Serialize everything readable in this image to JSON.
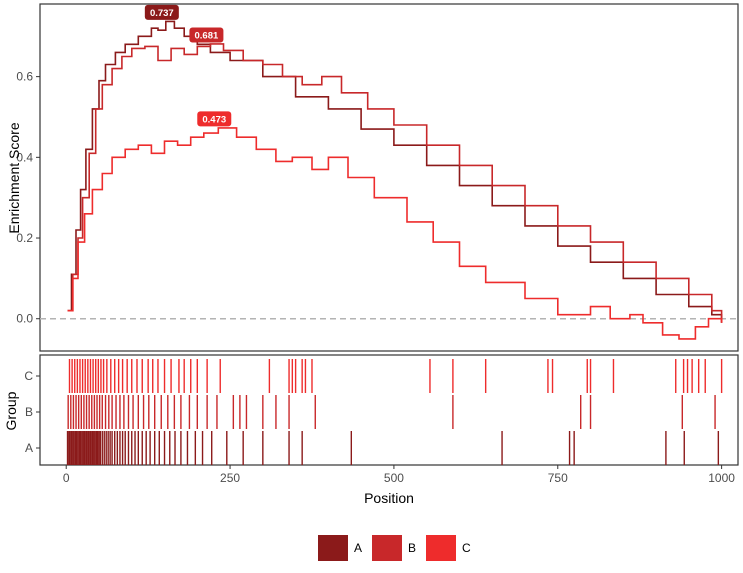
{
  "chart_data": [
    {
      "type": "line",
      "ylabel": "Enrichment Score",
      "xlim": [
        -40,
        1025
      ],
      "ylim": [
        -0.08,
        0.78
      ],
      "y_ticks": [
        0.0,
        0.2,
        0.4,
        0.6
      ],
      "y_tick_labels": [
        "0.0",
        "0.2",
        "0.4",
        "0.6"
      ],
      "reference_line": 0,
      "series": [
        {
          "name": "A",
          "color": "#8b1a1a",
          "peak": {
            "x": 152,
            "y": 0.737,
            "label": "0.737"
          },
          "points": [
            [
              2,
              0.02
            ],
            [
              8,
              0.11
            ],
            [
              15,
              0.22
            ],
            [
              22,
              0.32
            ],
            [
              30,
              0.42
            ],
            [
              40,
              0.52
            ],
            [
              50,
              0.59
            ],
            [
              60,
              0.63
            ],
            [
              75,
              0.66
            ],
            [
              90,
              0.68
            ],
            [
              110,
              0.7
            ],
            [
              130,
              0.72
            ],
            [
              140,
              0.715
            ],
            [
              152,
              0.737
            ],
            [
              165,
              0.72
            ],
            [
              180,
              0.7
            ],
            [
              200,
              0.68
            ],
            [
              220,
              0.66
            ],
            [
              250,
              0.64
            ],
            [
              300,
              0.6
            ],
            [
              350,
              0.55
            ],
            [
              400,
              0.52
            ],
            [
              450,
              0.47
            ],
            [
              500,
              0.43
            ],
            [
              550,
              0.38
            ],
            [
              600,
              0.33
            ],
            [
              650,
              0.28
            ],
            [
              700,
              0.23
            ],
            [
              750,
              0.18
            ],
            [
              800,
              0.14
            ],
            [
              850,
              0.1
            ],
            [
              900,
              0.06
            ],
            [
              950,
              0.03
            ],
            [
              985,
              0.01
            ],
            [
              1000,
              -0.01
            ]
          ]
        },
        {
          "name": "B",
          "color": "#c8282a",
          "peak": {
            "x": 220,
            "y": 0.681,
            "label": "0.681"
          },
          "points": [
            [
              2,
              0.02
            ],
            [
              10,
              0.11
            ],
            [
              18,
              0.2
            ],
            [
              25,
              0.3
            ],
            [
              35,
              0.41
            ],
            [
              45,
              0.52
            ],
            [
              55,
              0.58
            ],
            [
              70,
              0.62
            ],
            [
              85,
              0.65
            ],
            [
              100,
              0.67
            ],
            [
              120,
              0.675
            ],
            [
              140,
              0.64
            ],
            [
              160,
              0.67
            ],
            [
              180,
              0.655
            ],
            [
              200,
              0.675
            ],
            [
              220,
              0.681
            ],
            [
              240,
              0.665
            ],
            [
              270,
              0.64
            ],
            [
              300,
              0.63
            ],
            [
              330,
              0.6
            ],
            [
              360,
              0.58
            ],
            [
              390,
              0.6
            ],
            [
              420,
              0.56
            ],
            [
              460,
              0.52
            ],
            [
              500,
              0.48
            ],
            [
              550,
              0.43
            ],
            [
              600,
              0.38
            ],
            [
              650,
              0.33
            ],
            [
              700,
              0.28
            ],
            [
              750,
              0.23
            ],
            [
              800,
              0.19
            ],
            [
              850,
              0.14
            ],
            [
              900,
              0.1
            ],
            [
              950,
              0.06
            ],
            [
              985,
              0.02
            ],
            [
              1000,
              -0.01
            ]
          ]
        },
        {
          "name": "C",
          "color": "#ee2c2c",
          "peak": {
            "x": 232,
            "y": 0.473,
            "label": "0.473"
          },
          "points": [
            [
              2,
              0.02
            ],
            [
              10,
              0.1
            ],
            [
              18,
              0.19
            ],
            [
              28,
              0.26
            ],
            [
              40,
              0.32
            ],
            [
              55,
              0.36
            ],
            [
              70,
              0.4
            ],
            [
              90,
              0.42
            ],
            [
              110,
              0.43
            ],
            [
              130,
              0.41
            ],
            [
              150,
              0.44
            ],
            [
              170,
              0.43
            ],
            [
              190,
              0.45
            ],
            [
              210,
              0.46
            ],
            [
              232,
              0.473
            ],
            [
              260,
              0.45
            ],
            [
              290,
              0.42
            ],
            [
              320,
              0.39
            ],
            [
              345,
              0.4
            ],
            [
              375,
              0.37
            ],
            [
              400,
              0.4
            ],
            [
              430,
              0.35
            ],
            [
              470,
              0.3
            ],
            [
              520,
              0.24
            ],
            [
              560,
              0.19
            ],
            [
              600,
              0.13
            ],
            [
              640,
              0.09
            ],
            [
              700,
              0.05
            ],
            [
              750,
              0.01
            ],
            [
              800,
              0.03
            ],
            [
              830,
              0.0
            ],
            [
              860,
              0.01
            ],
            [
              880,
              -0.01
            ],
            [
              910,
              -0.04
            ],
            [
              935,
              -0.05
            ],
            [
              960,
              -0.02
            ],
            [
              980,
              0.0
            ],
            [
              1000,
              -0.01
            ]
          ]
        }
      ]
    },
    {
      "type": "heatmap",
      "xlabel": "Position",
      "ylabel": "Group",
      "xlim": [
        -40,
        1025
      ],
      "x_ticks": [
        0,
        250,
        500,
        750,
        1000
      ],
      "x_tick_labels": [
        "0",
        "250",
        "500",
        "750",
        "1000"
      ],
      "categories": [
        "C",
        "B",
        "A"
      ],
      "series": [
        {
          "name": "A",
          "color": "#8b1a1a",
          "hits": [
            2,
            4,
            6,
            8,
            10,
            12,
            14,
            16,
            18,
            20,
            22,
            24,
            26,
            28,
            30,
            32,
            34,
            36,
            38,
            40,
            42,
            44,
            46,
            48,
            50,
            52,
            55,
            58,
            61,
            64,
            67,
            70,
            74,
            78,
            82,
            86,
            90,
            95,
            100,
            105,
            110,
            116,
            122,
            128,
            135,
            142,
            150,
            158,
            166,
            175,
            185,
            197,
            208,
            222,
            245,
            270,
            300,
            340,
            360,
            435,
            665,
            768,
            775,
            915,
            943,
            995
          ]
        },
        {
          "name": "B",
          "color": "#c8282a",
          "hits": [
            3,
            7,
            11,
            15,
            19,
            23,
            27,
            31,
            35,
            39,
            43,
            47,
            51,
            55,
            60,
            65,
            70,
            76,
            82,
            88,
            95,
            102,
            110,
            118,
            126,
            135,
            145,
            155,
            165,
            175,
            188,
            200,
            215,
            230,
            255,
            265,
            275,
            300,
            320,
            340,
            380,
            590,
            785,
            800,
            940,
            990
          ]
        },
        {
          "name": "C",
          "color": "#ee2c2c",
          "hits": [
            5,
            9,
            13,
            17,
            21,
            25,
            29,
            33,
            37,
            41,
            45,
            49,
            53,
            57,
            62,
            68,
            74,
            80,
            86,
            93,
            100,
            108,
            116,
            125,
            132,
            140,
            150,
            160,
            172,
            180,
            190,
            200,
            215,
            235,
            310,
            340,
            345,
            350,
            360,
            365,
            375,
            555,
            590,
            640,
            735,
            742,
            795,
            800,
            835,
            930,
            942,
            948,
            955,
            965,
            975,
            1000
          ]
        }
      ]
    }
  ],
  "legend": {
    "position": "bottom",
    "items": [
      {
        "label": "A",
        "color": "#8b1a1a"
      },
      {
        "label": "B",
        "color": "#c8282a"
      },
      {
        "label": "C",
        "color": "#ee2c2c"
      }
    ]
  }
}
